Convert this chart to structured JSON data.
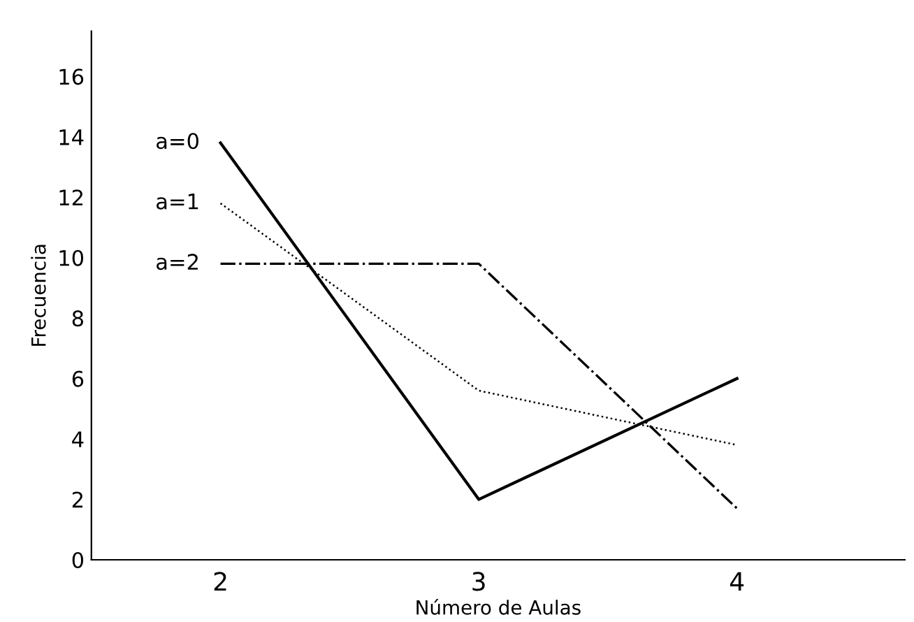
{
  "chart_data": {
    "type": "line",
    "xlabel": "Número de Aulas",
    "ylabel": "Frecuencia",
    "x": [
      2,
      3,
      4
    ],
    "series": [
      {
        "name": "a=0",
        "color": "#000000",
        "line_style": "solid",
        "values": [
          13.8,
          2,
          6
        ]
      },
      {
        "name": "a=1",
        "color": "#000000",
        "line_style": "dotted",
        "values": [
          11.8,
          5.6,
          3.8
        ]
      },
      {
        "name": "a=2",
        "color": "#000000",
        "line_style": "dashdot",
        "values": [
          9.8,
          9.8,
          1.7
        ]
      }
    ],
    "xlim": [
      1.5,
      4.65
    ],
    "ylim": [
      0,
      17.5
    ],
    "xticks": [
      2,
      3,
      4
    ],
    "yticks": [
      0,
      2,
      4,
      6,
      8,
      10,
      12,
      14,
      16
    ],
    "grid": false,
    "legend": false,
    "marker": "none"
  }
}
